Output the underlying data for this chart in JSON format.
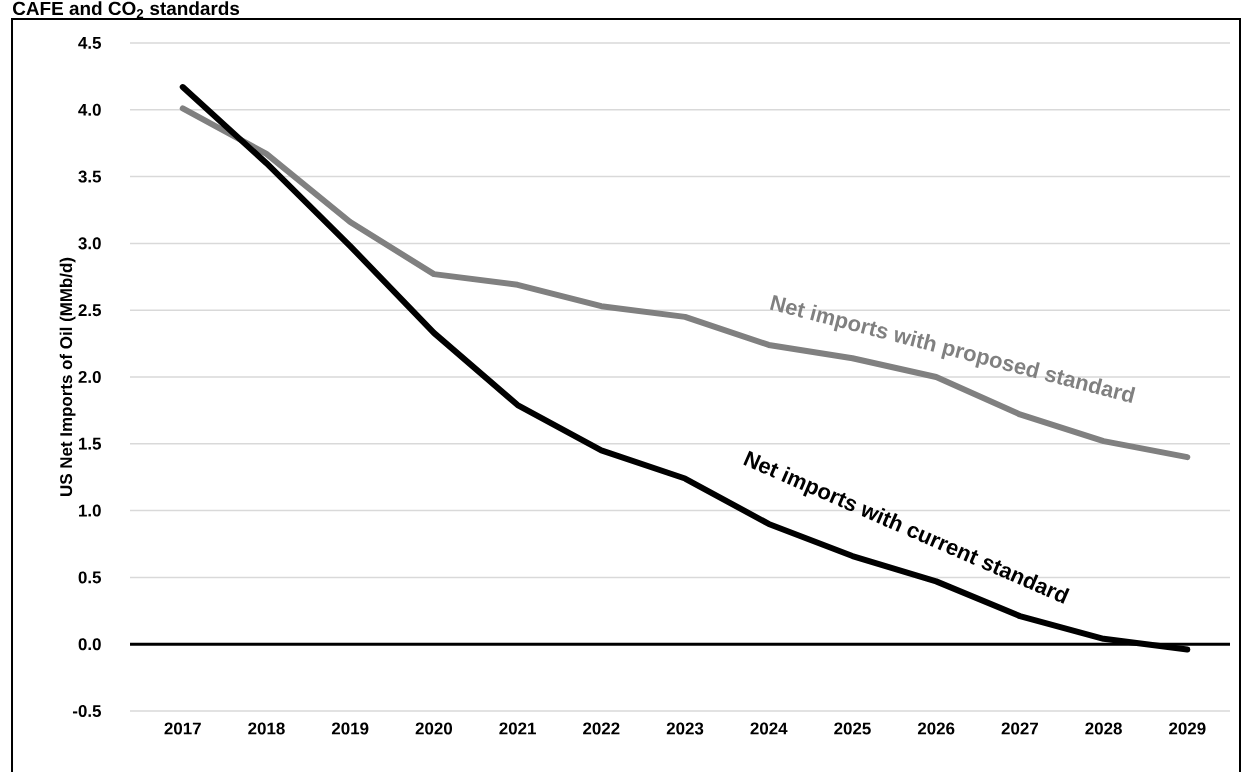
{
  "chart_data": {
    "type": "line",
    "title": "CAFE and CO$_{2}$ standards",
    "ylabel": "US Net Imports of Oil (MMb/d)",
    "categories": [
      "2017",
      "2018",
      "2019",
      "2020",
      "2021",
      "2022",
      "2023",
      "2024",
      "2025",
      "2026",
      "2027",
      "2028",
      "2029"
    ],
    "series": [
      {
        "color": "#808080",
        "values": [
          4.01,
          3.67,
          3.16,
          2.77,
          2.69,
          2.53,
          2.45,
          2.24,
          2.14,
          2.0,
          1.72,
          1.52,
          1.4
        ]
      },
      {
        "color": "#000000",
        "values": [
          4.17,
          3.6,
          2.98,
          2.33,
          1.79,
          1.45,
          1.24,
          0.9,
          0.66,
          0.47,
          0.21,
          0.04,
          -0.04
        ]
      }
    ],
    "ylim": [
      -0.5,
      4.5
    ],
    "yticks": [
      {
        "value": -0.5,
        "label": "-0.5"
      },
      {
        "value": 0,
        "label": "0.0"
      },
      {
        "value": 0.5,
        "label": "0.5"
      },
      {
        "value": 1,
        "label": "1.0"
      },
      {
        "value": 1.5,
        "label": "1.5"
      },
      {
        "value": 2,
        "label": "2.0"
      },
      {
        "value": 2.5,
        "label": "2.5"
      },
      {
        "value": 3,
        "label": "3.0"
      },
      {
        "value": 3.5,
        "label": "3.5"
      },
      {
        "value": 4,
        "label": "4.0"
      },
      {
        "value": 4.5,
        "label": "4.5"
      }
    ],
    "grid": "y",
    "ref_lines": [
      {
        "axis": "y",
        "value": 0,
        "color": "#000000"
      }
    ],
    "annotations": [
      "Net imports with proposed standard",
      "Net imports with current standard"
    ]
  }
}
